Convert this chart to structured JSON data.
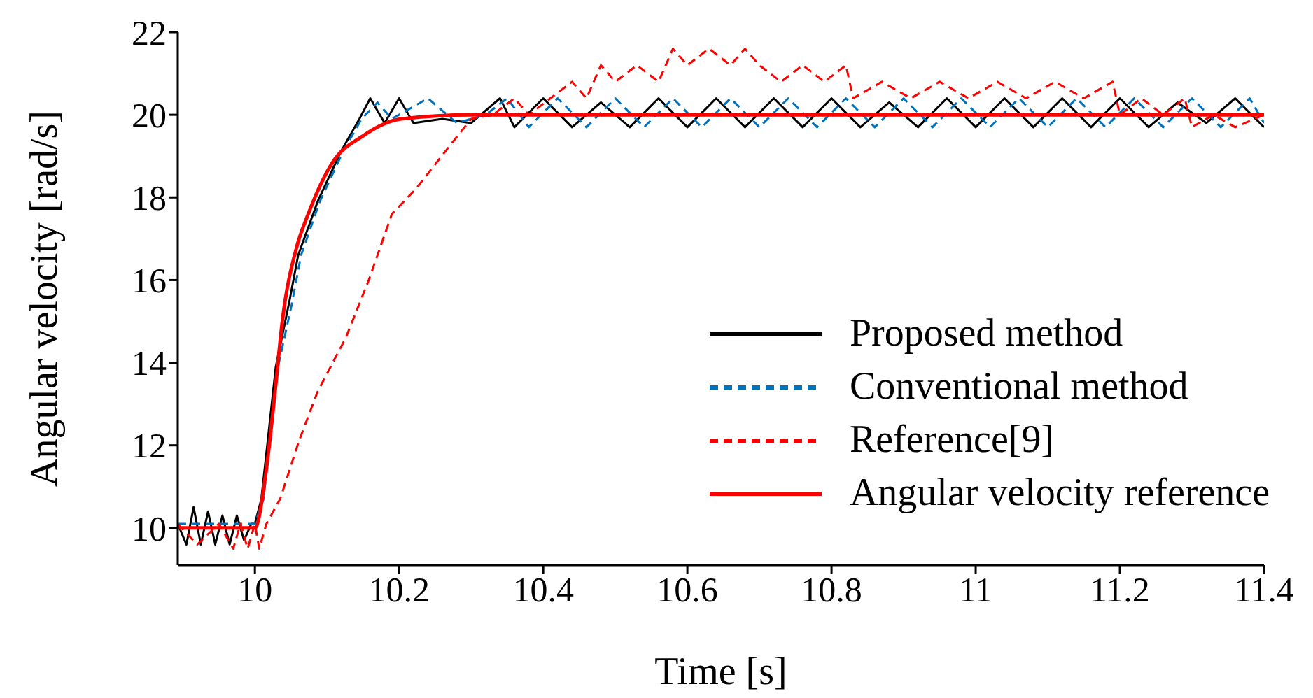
{
  "chart_data": {
    "type": "line",
    "xlabel": "Time [s]",
    "ylabel": "Angular velocity [rad/s]",
    "xlim": [
      9.893,
      11.4
    ],
    "xticks": [
      10,
      10.2,
      10.4,
      10.6,
      10.8,
      11,
      11.2,
      11.4
    ],
    "ylim": [
      9.1,
      22
    ],
    "yticks": [
      10,
      12,
      14,
      16,
      18,
      20,
      22
    ],
    "legend": "bottom right",
    "marker": "none",
    "series": [
      {
        "name": "Proposed method",
        "color": "#000000",
        "line_style": "solid",
        "x": [
          9.893,
          9.905,
          9.915,
          9.925,
          9.935,
          9.945,
          9.955,
          9.965,
          9.975,
          9.985,
          9.995,
          10.0,
          10.009,
          10.029,
          10.048,
          10.06,
          10.087,
          10.119,
          10.145,
          10.16,
          10.18,
          10.2,
          10.22,
          10.26,
          10.3,
          10.34,
          10.36,
          10.4,
          10.44,
          10.48,
          10.52,
          10.56,
          10.6,
          10.64,
          10.68,
          10.72,
          10.76,
          10.8,
          10.84,
          10.88,
          10.92,
          10.96,
          11.0,
          11.04,
          11.08,
          11.12,
          11.16,
          11.2,
          11.24,
          11.28,
          11.32,
          11.36,
          11.4
        ],
        "values": [
          10.1,
          9.6,
          10.5,
          9.6,
          10.4,
          9.6,
          10.3,
          9.6,
          10.3,
          9.7,
          10.1,
          10.1,
          10.7,
          13.9,
          15.5,
          16.6,
          17.9,
          19.1,
          19.9,
          20.4,
          19.8,
          20.4,
          19.8,
          19.9,
          19.8,
          20.4,
          19.7,
          20.4,
          19.7,
          20.3,
          19.7,
          20.4,
          19.7,
          20.4,
          19.7,
          20.4,
          19.7,
          20.4,
          19.7,
          20.3,
          19.7,
          20.4,
          19.7,
          20.4,
          19.7,
          20.4,
          19.7,
          20.4,
          19.7,
          20.3,
          19.8,
          20.4,
          19.7
        ]
      },
      {
        "name": "Conventional method",
        "color": "#0072bd",
        "line_style": "dashed",
        "x": [
          9.893,
          9.95,
          10.0,
          10.012,
          10.032,
          10.051,
          10.064,
          10.09,
          10.122,
          10.148,
          10.17,
          10.19,
          10.24,
          10.28,
          10.32,
          10.35,
          10.38,
          10.42,
          10.46,
          10.5,
          10.54,
          10.58,
          10.62,
          10.66,
          10.7,
          10.74,
          10.78,
          10.82,
          10.86,
          10.9,
          10.94,
          10.98,
          11.02,
          11.06,
          11.1,
          11.14,
          11.18,
          11.22,
          11.26,
          11.3,
          11.34,
          11.38,
          11.4
        ],
        "values": [
          10.1,
          10.1,
          10.1,
          10.7,
          13.9,
          15.4,
          16.6,
          17.9,
          19.1,
          19.9,
          20.3,
          19.9,
          20.4,
          19.8,
          20.0,
          20.4,
          19.7,
          20.4,
          19.7,
          20.4,
          19.7,
          20.4,
          19.7,
          20.4,
          19.7,
          20.4,
          19.7,
          20.4,
          19.7,
          20.4,
          19.7,
          20.4,
          19.7,
          20.4,
          19.7,
          20.4,
          19.7,
          20.4,
          19.7,
          20.4,
          19.7,
          20.4,
          19.8
        ]
      },
      {
        "name": "Reference[9]",
        "color": "#ff0000",
        "line_style": "dashed",
        "x": [
          9.893,
          9.92,
          9.95,
          9.97,
          9.98,
          9.99,
          10.0,
          10.006,
          10.016,
          10.035,
          10.061,
          10.087,
          10.126,
          10.158,
          10.19,
          10.223,
          10.268,
          10.3,
          10.33,
          10.36,
          10.38,
          10.41,
          10.44,
          10.46,
          10.48,
          10.5,
          10.53,
          10.56,
          10.58,
          10.6,
          10.63,
          10.66,
          10.68,
          10.7,
          10.73,
          10.76,
          10.79,
          10.82,
          10.83,
          10.87,
          10.91,
          10.95,
          10.99,
          11.03,
          11.07,
          11.11,
          11.15,
          11.19,
          11.2,
          11.23,
          11.26,
          11.29,
          11.3,
          11.33,
          11.36,
          11.4
        ],
        "values": [
          10.1,
          9.6,
          10.1,
          9.5,
          10.1,
          9.5,
          10.1,
          9.5,
          10.1,
          10.7,
          12.1,
          13.3,
          14.6,
          16.0,
          17.6,
          18.2,
          19.2,
          19.9,
          20.0,
          20.4,
          20.0,
          20.4,
          20.8,
          20.4,
          21.2,
          20.8,
          21.2,
          20.8,
          21.6,
          21.2,
          21.6,
          21.2,
          21.6,
          21.2,
          20.8,
          21.2,
          20.8,
          21.2,
          20.4,
          20.8,
          20.4,
          20.8,
          20.4,
          20.8,
          20.4,
          20.8,
          20.4,
          20.8,
          20.0,
          20.4,
          20.0,
          20.4,
          19.7,
          20.0,
          19.7,
          20.0
        ]
      },
      {
        "name": "Angular velocity reference",
        "color": "#ff0000",
        "line_style": "solid",
        "x": [
          9.893,
          10.0,
          10.015,
          10.028,
          10.038,
          10.058,
          10.074,
          10.106,
          10.151,
          10.203,
          10.3,
          11.4
        ],
        "values": [
          10.0,
          10.0,
          11.3,
          13.3,
          15.0,
          16.8,
          17.6,
          18.8,
          19.5,
          19.9,
          20.0,
          20.0
        ]
      }
    ]
  }
}
